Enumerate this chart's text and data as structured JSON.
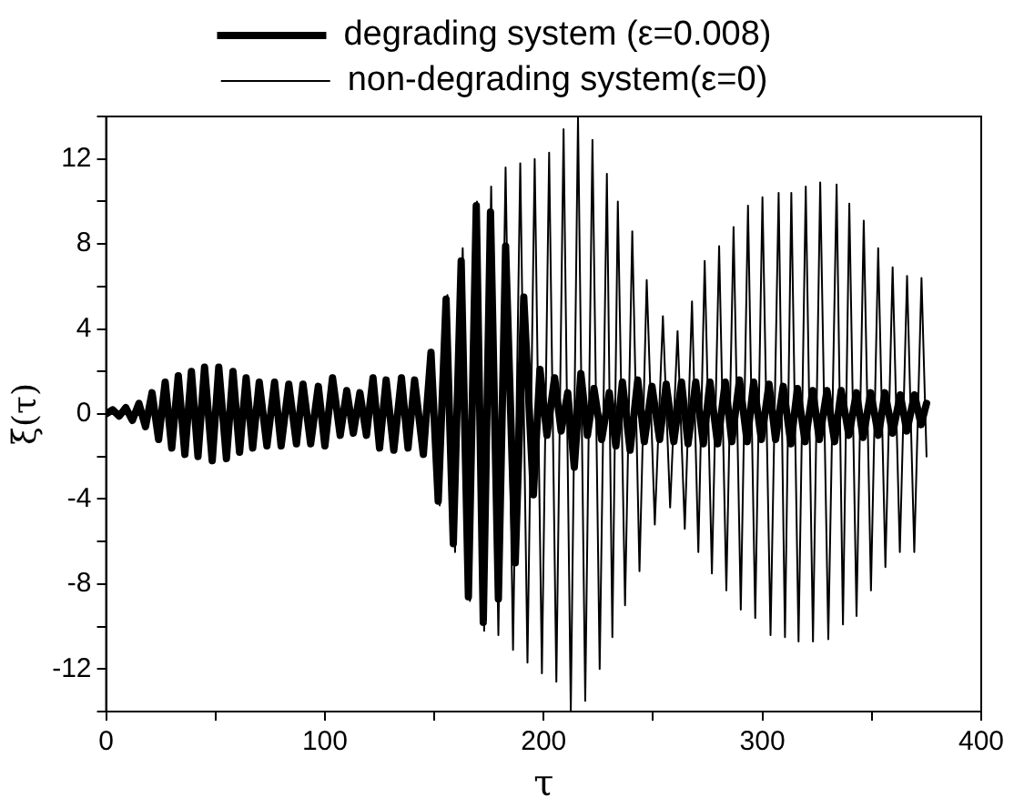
{
  "chart_data": {
    "type": "line",
    "xlabel": "τ",
    "ylabel": "ξ(τ)",
    "xlim": [
      0,
      400
    ],
    "ylim": [
      -14,
      14
    ],
    "xticks": [
      0,
      {
        "value": 50,
        "label": null
      },
      100,
      {
        "value": 150,
        "label": null
      },
      200,
      {
        "value": 250,
        "label": null
      },
      300,
      {
        "value": 350,
        "label": null
      },
      400
    ],
    "yticks": [
      {
        "value": -14,
        "label": null
      },
      -12,
      {
        "value": -10,
        "label": null
      },
      -8,
      {
        "value": -6,
        "label": null
      },
      -4,
      {
        "value": -2,
        "label": null
      },
      0,
      {
        "value": 2,
        "label": null
      },
      4,
      {
        "value": 6,
        "label": null
      },
      8,
      {
        "value": 10,
        "label": null
      },
      12,
      {
        "value": 14,
        "label": null
      }
    ],
    "grid": false,
    "legend": "top",
    "marker": "none",
    "line_style": "solid",
    "series": [
      {
        "name": "degrading system (ε=0.008)",
        "color": "#000000",
        "x": [
          0,
          3,
          6,
          9,
          12,
          15,
          18,
          21,
          24,
          27,
          30,
          33,
          36,
          39,
          42,
          45,
          48.5,
          51.5,
          55,
          58,
          61,
          64,
          67,
          70,
          73.5,
          77,
          80,
          83.5,
          87,
          90,
          93.5,
          97,
          100,
          103.5,
          107,
          110,
          113,
          116,
          119,
          122,
          125,
          128,
          131.5,
          135,
          138,
          141,
          145,
          148.5,
          151.8,
          155.4,
          158.7,
          162.3,
          165.6,
          169.2,
          172.4,
          175.7,
          179.3,
          182.6,
          187,
          190.9,
          195.3,
          198.3,
          201.5,
          205,
          208,
          211,
          214,
          217,
          220,
          223,
          226.5,
          230,
          233,
          236,
          239.5,
          243,
          246,
          249.5,
          253,
          256,
          259.5,
          263,
          266,
          269.5,
          273,
          276,
          279.5,
          283,
          286,
          289.5,
          293,
          296,
          299.5,
          303,
          306,
          309.5,
          313,
          316,
          319.5,
          323,
          326,
          329.5,
          333,
          336,
          339.5,
          343,
          346,
          349.5,
          353,
          356,
          359.5,
          363,
          366,
          369.5,
          372.5,
          375
        ],
        "values": [
          0,
          0.2,
          -0.1,
          0.3,
          -0.3,
          0.5,
          -0.6,
          1.0,
          -1.2,
          1.5,
          -1.6,
          1.8,
          -1.9,
          2.0,
          -2.0,
          2.2,
          -2.2,
          2.2,
          -2.1,
          2.0,
          -1.8,
          1.7,
          -1.6,
          1.5,
          -1.5,
          1.5,
          -1.5,
          1.4,
          -1.4,
          1.4,
          -1.4,
          1.3,
          -1.5,
          1.7,
          -1.0,
          1.1,
          -0.9,
          1.0,
          -1.0,
          1.7,
          -1.6,
          1.6,
          -1.7,
          1.7,
          -1.6,
          1.6,
          -1.9,
          2.9,
          -4.1,
          5.4,
          -6.1,
          7.2,
          -8.6,
          9.8,
          -9.8,
          9.5,
          -8.7,
          7.9,
          -7.0,
          5.5,
          -3.8,
          2.1,
          -1.0,
          1.7,
          -0.8,
          1.0,
          -2.5,
          1.9,
          -1.0,
          1.2,
          -1.2,
          1.0,
          -1.5,
          1.5,
          -1.7,
          1.6,
          -1.3,
          1.3,
          -1.2,
          1.4,
          -1.3,
          1.5,
          -1.4,
          1.5,
          -1.4,
          1.5,
          -1.4,
          1.5,
          -1.3,
          1.6,
          -1.3,
          1.5,
          -1.2,
          1.4,
          -1.2,
          1.3,
          -1.4,
          1.2,
          -1.3,
          1.1,
          -1.2,
          1.1,
          -1.3,
          1.1,
          -1.0,
          1.0,
          -1.1,
          1.0,
          -1.0,
          1.0,
          -0.9,
          0.9,
          -0.8,
          0.9,
          -0.5,
          0.5
        ]
      },
      {
        "name": "non-degrading system(ε=0)",
        "color": "#000000",
        "x": [
          146,
          149,
          152.5,
          156,
          159.5,
          163,
          166.3,
          169.5,
          172.8,
          176,
          179.3,
          182.6,
          186,
          189.3,
          192.6,
          195.9,
          199.2,
          202.5,
          205.8,
          209.1,
          212.4,
          215.7,
          219,
          222.3,
          225.6,
          228.9,
          231.4,
          233.9,
          237.2,
          240.5,
          243.8,
          247.1,
          250.8,
          254.5,
          257.8,
          261.2,
          264.5,
          267.8,
          270.7,
          273.6,
          276.9,
          280.2,
          283.5,
          286.8,
          290.1,
          293.4,
          296.7,
          300,
          303.7,
          307.4,
          310.3,
          313.2,
          316.5,
          319.8,
          323.1,
          326.4,
          330.1,
          333.9,
          336.8,
          339.7,
          343,
          346.3,
          349.6,
          352.9,
          356.2,
          359.5,
          362.8,
          366.1,
          369.4,
          372.7,
          375
        ],
        "values": [
          0,
          3.0,
          -4.3,
          5.6,
          -6.5,
          7.8,
          -8.8,
          10.0,
          -10.2,
          10.7,
          -10.4,
          11.6,
          -11.1,
          11.8,
          -11.7,
          12.0,
          -12.2,
          12.3,
          -12.6,
          13.4,
          -14,
          14,
          -13.5,
          12.9,
          -12.0,
          11.3,
          -10.5,
          10.0,
          -9.0,
          8.6,
          -7.4,
          6.3,
          -5.2,
          4.6,
          -4.4,
          3.9,
          -5.4,
          5.3,
          -6.5,
          7.2,
          -7.5,
          7.9,
          -8.3,
          8.8,
          -9.2,
          9.8,
          -9.6,
          10.2,
          -10.4,
          10.4,
          -10.5,
          10.4,
          -10.7,
          10.7,
          -10.7,
          10.9,
          -10.6,
          10.8,
          -9.9,
          9.9,
          -9.5,
          9.1,
          -8.3,
          7.8,
          -7.2,
          6.9,
          -6.5,
          6.5,
          -6.5,
          6.4,
          -2.0
        ]
      }
    ]
  }
}
